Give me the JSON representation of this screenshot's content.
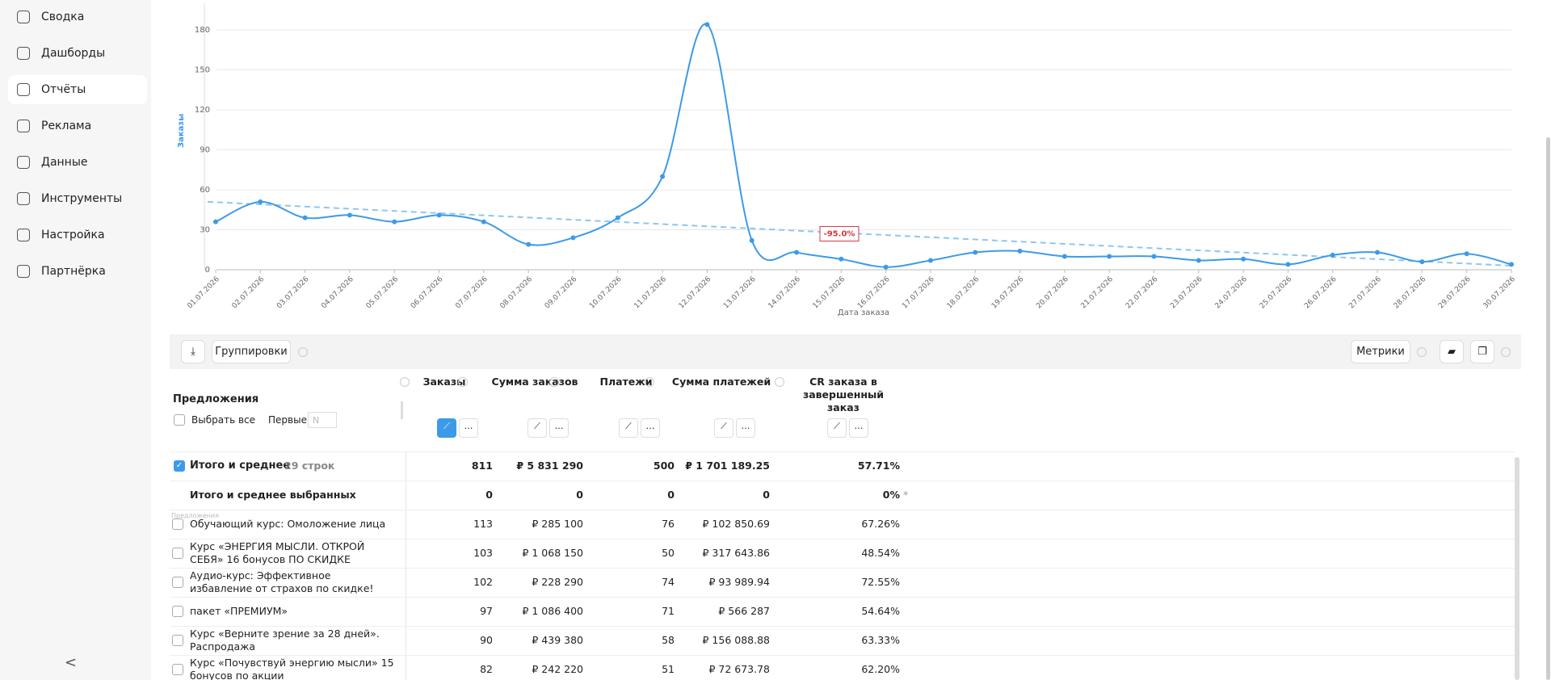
{
  "sidebar": {
    "items": [
      "Сводка",
      "Дашборды",
      "Отчёты",
      "Реклама",
      "Данные",
      "Инструменты",
      "Настройка",
      "Партнёрка"
    ],
    "active": 2
  },
  "chart_data": {
    "type": "line",
    "x_label": "Дата заказа",
    "y_label": "Заказы",
    "categories": [
      "01.07.2026",
      "02.07.2026",
      "03.07.2026",
      "04.07.2026",
      "05.07.2026",
      "06.07.2026",
      "07.07.2026",
      "08.07.2026",
      "09.07.2026",
      "10.07.2026",
      "11.07.2026",
      "12.07.2026",
      "13.07.2026",
      "14.07.2026",
      "15.07.2026",
      "16.07.2026",
      "17.07.2026",
      "18.07.2026",
      "19.07.2026",
      "20.07.2026",
      "21.07.2026",
      "22.07.2026",
      "23.07.2026",
      "24.07.2026",
      "25.07.2026",
      "26.07.2026",
      "27.07.2026",
      "28.07.2026",
      "29.07.2026",
      "30.07.2026"
    ],
    "values": [
      36,
      51,
      39,
      41,
      36,
      41,
      36,
      19,
      24,
      39,
      70,
      184,
      22,
      13,
      8,
      2,
      7,
      13,
      14,
      10,
      10,
      10,
      7,
      8,
      4,
      11,
      13,
      6,
      12,
      4
    ],
    "color": "#3d9ae8",
    "trend": {
      "values": [
        51,
        3
      ],
      "label": "-95.0%",
      "color": "#8fc5f0"
    },
    "ylim": [
      0,
      200
    ],
    "yticks": [
      0,
      30,
      60,
      90,
      120,
      150,
      180
    ],
    "grid": true
  },
  "toolbar": {
    "groupings": "Группировки",
    "metrics": "Метрики"
  },
  "table": {
    "offers": "Предложения",
    "select_all": "Выбрать все",
    "first": "Первые",
    "first_placeholder": "N",
    "columns": [
      "Заказы",
      "Сумма заказов",
      "Платежи",
      "Сумма платежей",
      "CR заказа в завершенный заказ"
    ],
    "total": {
      "label": "Итого и среднее",
      "count": "29 строк",
      "cells": [
        "811",
        "₽ 5 831 290",
        "500",
        "₽ 1 701 189.25",
        "57.71%"
      ]
    },
    "selected": {
      "label": "Итого и среднее выбранных",
      "cells": [
        "0",
        "0",
        "0",
        "0",
        "0%"
      ],
      "note": "*"
    },
    "group_hint": "Предложения",
    "rows": [
      {
        "name": "Обучающий курс: Омоложение лица",
        "cells": [
          "113",
          "₽ 285 100",
          "76",
          "₽ 102 850.69",
          "67.26%"
        ]
      },
      {
        "name": "Курс «ЭНЕРГИЯ МЫСЛИ. ОТКРОЙ СЕБЯ» 16 бонусов ПО СКИДКЕ",
        "cells": [
          "103",
          "₽ 1 068 150",
          "50",
          "₽ 317 643.86",
          "48.54%"
        ]
      },
      {
        "name": "Аудио-курс: Эффективное избавление от страхов по скидке!",
        "cells": [
          "102",
          "₽ 228 290",
          "74",
          "₽ 93 989.94",
          "72.55%"
        ]
      },
      {
        "name": "пакет «ПРЕМИУМ»",
        "cells": [
          "97",
          "₽ 1 086 400",
          "71",
          "₽ 566 287",
          "54.64%"
        ]
      },
      {
        "name": "Курс «Верните зрение за 28 дней». Распродажа",
        "cells": [
          "90",
          "₽ 439 380",
          "58",
          "₽ 156 088.88",
          "63.33%"
        ]
      },
      {
        "name": "Курс «Почувствуй энергию мысли» 15 бонусов по акции",
        "cells": [
          "82",
          "₽ 242 220",
          "51",
          "₽ 72 673.78",
          "62.20%"
        ]
      }
    ]
  }
}
